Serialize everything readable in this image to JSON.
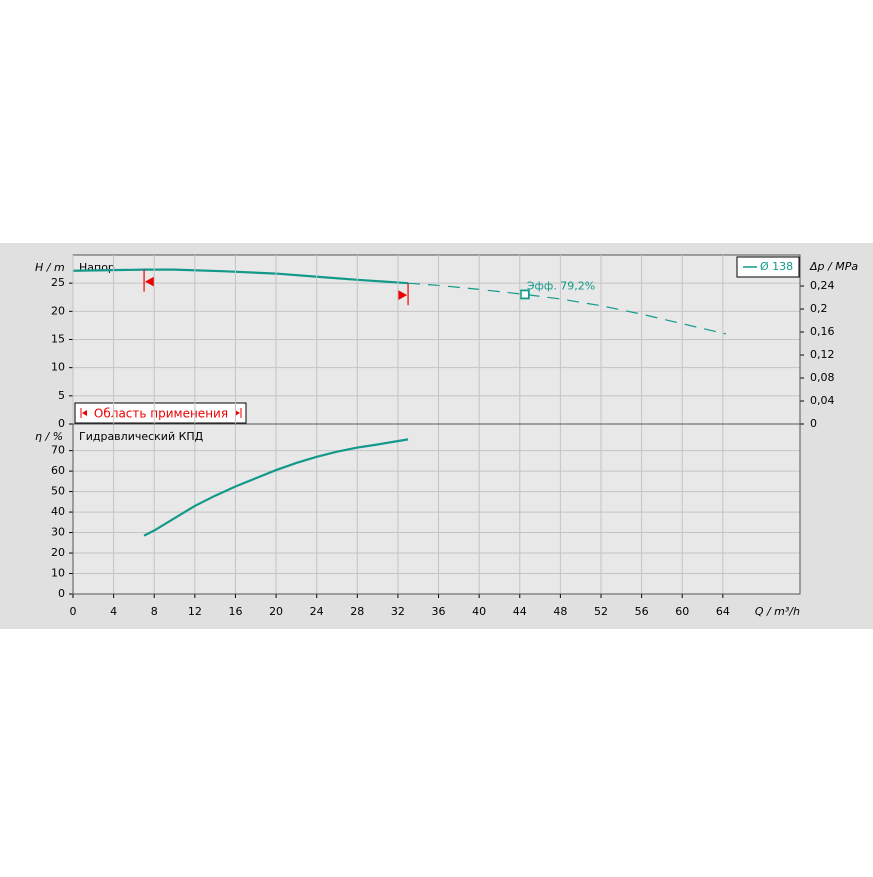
{
  "chart_data": [
    {
      "type": "line",
      "title": "Напор",
      "ylabel": "H / m",
      "y2label": "Δp / MPa",
      "x": [
        0,
        7,
        10,
        15,
        20,
        25,
        28,
        33,
        36,
        40,
        44.5,
        48,
        52,
        56,
        60,
        64.3
      ],
      "series": [
        {
          "name": "Ø 138",
          "color": "#12998a",
          "values": [
            27.2,
            27.4,
            27.4,
            27.1,
            26.7,
            26.0,
            25.6,
            25.0,
            24.6,
            23.9,
            23.0,
            22.2,
            21.0,
            19.5,
            17.8,
            16.0
          ]
        }
      ],
      "xlim": [
        0,
        71.6
      ],
      "ylim": [
        0,
        30
      ],
      "yticks": [
        0,
        5,
        10,
        15,
        20,
        25
      ],
      "y2lim": [
        0,
        0.294
      ],
      "y2ticks": [
        0,
        {
          "value": 0.04,
          "label": "0,04"
        },
        {
          "value": 0.08,
          "label": "0,08"
        },
        {
          "value": 0.12,
          "label": "0,12"
        },
        {
          "value": 0.16,
          "label": "0,16"
        },
        {
          "value": 0.2,
          "label": "0,2"
        },
        {
          "value": 0.24,
          "label": "0,24"
        }
      ],
      "application_range": {
        "label": "Область применения",
        "x": [
          7,
          33
        ]
      },
      "duty_point": {
        "label": "Эфф. 79,2%",
        "x": 44.5,
        "y": 23.0
      },
      "grid": true
    },
    {
      "type": "line",
      "title": "Гидравлический КПД",
      "ylabel": "η / %",
      "xlabel": "Q / m³/h",
      "x": [
        7,
        8,
        10,
        12,
        14,
        16,
        18,
        20,
        22,
        24,
        26,
        28,
        30,
        33
      ],
      "series": [
        {
          "color": "#12998a",
          "values": [
            28.5,
            31,
            37,
            43,
            48,
            52.5,
            56.5,
            60.5,
            64,
            67,
            69.5,
            71.5,
            73,
            75.5
          ]
        }
      ],
      "xlim": [
        0,
        71.6
      ],
      "xticks": [
        0,
        4,
        8,
        12,
        16,
        20,
        24,
        28,
        32,
        36,
        40,
        44,
        48,
        52,
        56,
        60,
        64
      ],
      "ylim": [
        0,
        83
      ],
      "yticks": [
        0,
        10,
        20,
        30,
        40,
        50,
        60,
        70
      ],
      "grid": true
    }
  ]
}
